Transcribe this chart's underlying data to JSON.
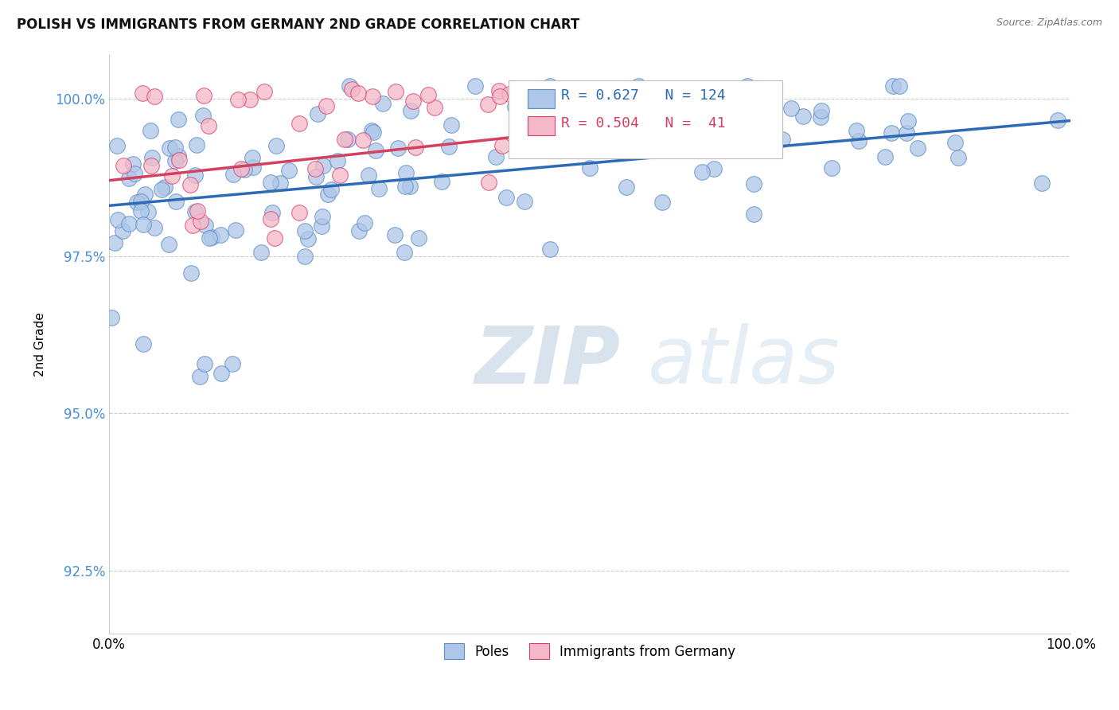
{
  "title": "POLISH VS IMMIGRANTS FROM GERMANY 2ND GRADE CORRELATION CHART",
  "source": "Source: ZipAtlas.com",
  "ylabel": "2nd Grade",
  "xlim": [
    0.0,
    1.0
  ],
  "ylim": [
    0.915,
    1.007
  ],
  "yticks": [
    0.925,
    0.95,
    0.975,
    1.0
  ],
  "ytick_labels": [
    "92.5%",
    "95.0%",
    "97.5%",
    "100.0%"
  ],
  "blue_color": "#aec6e8",
  "blue_edge_color": "#5b8ec4",
  "pink_color": "#f5b8c8",
  "pink_edge_color": "#d94070",
  "blue_line_color": "#2d6bb5",
  "pink_line_color": "#d44060",
  "R_blue": 0.627,
  "N_blue": 124,
  "R_pink": 0.504,
  "N_pink": 41,
  "watermark_zip": "ZIP",
  "watermark_atlas": "atlas",
  "watermark_color_zip": "#b8cfe0",
  "watermark_color_atlas": "#c8dde8",
  "background_color": "#ffffff",
  "grid_color": "#cccccc",
  "legend_box_color": "#f0f4f8",
  "legend_box_edge": "#aaaaaa",
  "blue_trendline_x": [
    0.0,
    1.0
  ],
  "blue_trendline_y": [
    0.983,
    0.9965
  ],
  "pink_trendline_x": [
    0.0,
    0.55
  ],
  "pink_trendline_y": [
    0.987,
    0.996
  ]
}
